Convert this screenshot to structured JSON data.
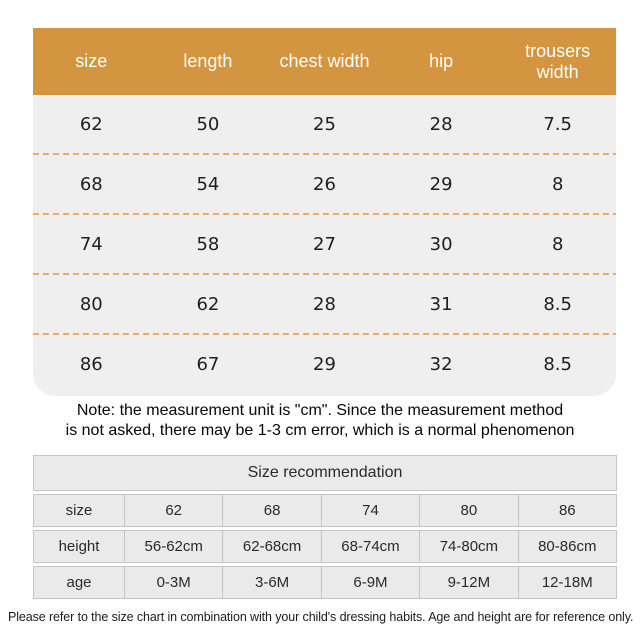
{
  "main_table": {
    "headers": [
      "size",
      "length",
      "chest width",
      "hip",
      "trousers width"
    ],
    "rows": [
      [
        "62",
        "50",
        "25",
        "28",
        "7.5"
      ],
      [
        "68",
        "54",
        "26",
        "29",
        "8"
      ],
      [
        "74",
        "58",
        "27",
        "30",
        "8"
      ],
      [
        "80",
        "62",
        "28",
        "31",
        "8.5"
      ],
      [
        "86",
        "67",
        "29",
        "32",
        "8.5"
      ]
    ]
  },
  "note": {
    "line1": "Note: the measurement unit is \"cm\". Since the measurement method",
    "line2": "is not asked, there may be 1-3 cm error, which is a normal phenomenon"
  },
  "recommendation_table": {
    "title": "Size recommendation",
    "rows": [
      {
        "label": "size",
        "values": [
          "62",
          "68",
          "74",
          "80",
          "86"
        ]
      },
      {
        "label": "height",
        "values": [
          "56-62cm",
          "62-68cm",
          "68-74cm",
          "74-80cm",
          "80-86cm"
        ]
      },
      {
        "label": "age",
        "values": [
          "0-3M",
          "3-6M",
          "6-9M",
          "9-12M",
          "12-18M"
        ]
      }
    ]
  },
  "footer_text": "Please refer to the size chart in combination with your child's dressing habits. Age and height are for reference only.",
  "colors": {
    "header_bg": "#D3953F",
    "header_text": "#FFFFFF",
    "panel_bg": "#EFEFEF",
    "dashed_separator": "#E9AB6B",
    "rec_cell_bg": "#EAEAEA",
    "rec_cell_border": "#C5C5C5",
    "body_text": "#1F1F1F"
  }
}
